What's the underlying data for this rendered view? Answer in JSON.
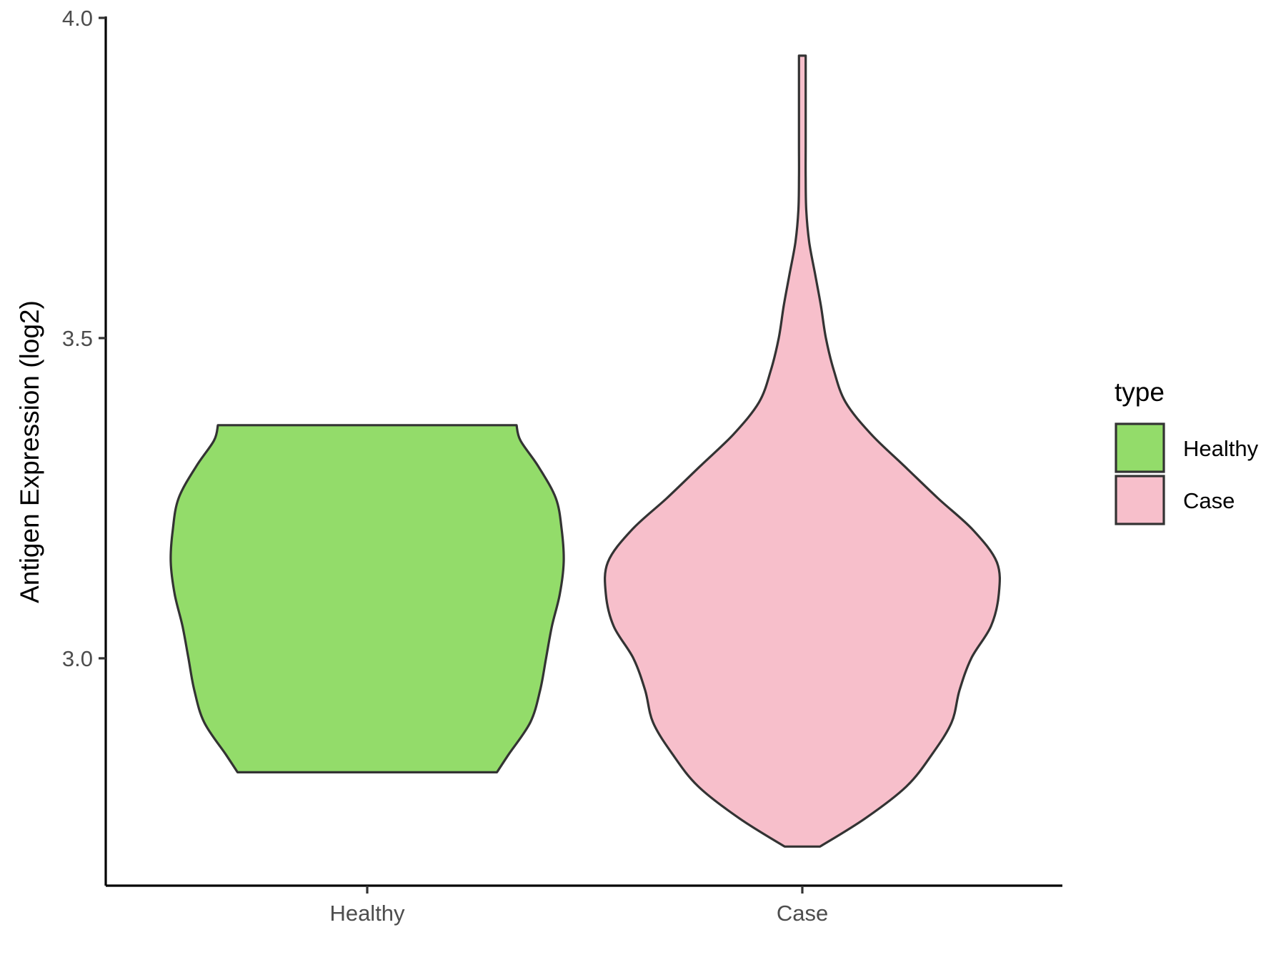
{
  "chart_data": {
    "type": "violin",
    "title": "",
    "xlabel": "",
    "ylabel": "Antigen Expression (log2)",
    "ylim": [
      2.645,
      4.0
    ],
    "yticks": [
      3.0,
      3.5,
      4.0
    ],
    "ytick_labels": [
      "3.0",
      "3.5",
      "4.0"
    ],
    "categories": [
      "Healthy",
      "Case"
    ],
    "grid": false,
    "legend": {
      "title": "type",
      "placement": "right",
      "entries": [
        {
          "label": "Healthy",
          "color": "#93DC6A"
        },
        {
          "label": "Case",
          "color": "#F7BFCB"
        }
      ]
    },
    "series": [
      {
        "category": "Healthy",
        "color": "#93DC6A",
        "min": 2.822,
        "max": 3.364,
        "density_profile": [
          [
            2.822,
            0.66
          ],
          [
            2.85,
            0.72
          ],
          [
            2.9,
            0.83
          ],
          [
            2.95,
            0.88
          ],
          [
            3.0,
            0.91
          ],
          [
            3.05,
            0.94
          ],
          [
            3.1,
            0.98
          ],
          [
            3.15,
            1.0
          ],
          [
            3.2,
            0.99
          ],
          [
            3.25,
            0.96
          ],
          [
            3.3,
            0.87
          ],
          [
            3.34,
            0.78
          ],
          [
            3.364,
            0.76
          ]
        ]
      },
      {
        "category": "Case",
        "color": "#F7BFCB",
        "min": 2.706,
        "max": 3.941,
        "density_profile": [
          [
            2.706,
            0.09
          ],
          [
            2.75,
            0.32
          ],
          [
            2.8,
            0.53
          ],
          [
            2.85,
            0.66
          ],
          [
            2.9,
            0.76
          ],
          [
            2.95,
            0.8
          ],
          [
            3.0,
            0.86
          ],
          [
            3.05,
            0.96
          ],
          [
            3.1,
            1.0
          ],
          [
            3.15,
            0.99
          ],
          [
            3.2,
            0.87
          ],
          [
            3.25,
            0.69
          ],
          [
            3.3,
            0.52
          ],
          [
            3.35,
            0.35
          ],
          [
            3.4,
            0.22
          ],
          [
            3.45,
            0.16
          ],
          [
            3.5,
            0.12
          ],
          [
            3.55,
            0.095
          ],
          [
            3.6,
            0.065
          ],
          [
            3.65,
            0.035
          ],
          [
            3.7,
            0.02
          ],
          [
            3.75,
            0.017
          ],
          [
            3.8,
            0.017
          ],
          [
            3.85,
            0.017
          ],
          [
            3.9,
            0.017
          ],
          [
            3.941,
            0.017
          ]
        ]
      }
    ]
  }
}
